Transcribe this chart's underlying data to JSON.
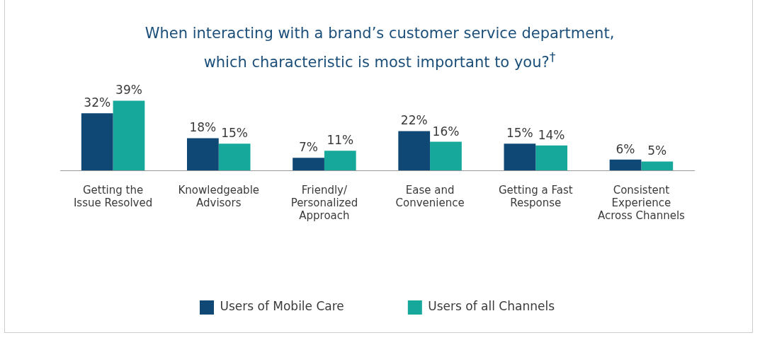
{
  "chart_data": {
    "type": "bar",
    "title": "When interacting with a brand’s customer service department, which characteristic is most important to you?$^{†}$",
    "categories": [
      "Getting the Issue Resolved",
      "Knowledgeable Advisors",
      "Friendly/ Personalized Approach",
      "Ease and Convenience",
      "Getting a Fast Response",
      "Consistent Experience Across Channels"
    ],
    "series": [
      {
        "name": "Users of Mobile Care",
        "color": "#0f4775",
        "values": [
          32,
          18,
          7,
          22,
          15,
          6
        ],
        "value_labels": [
          "32%",
          "18%",
          "7%",
          "22%",
          "15%",
          "6%"
        ]
      },
      {
        "name": "Users of all Channels",
        "color": "#15a89b",
        "values": [
          39,
          15,
          11,
          16,
          14,
          5
        ],
        "value_labels": [
          "39%",
          "15%",
          "11%",
          "16%",
          "14%",
          "5%"
        ]
      }
    ],
    "legend": "bottom",
    "grid": false
  }
}
